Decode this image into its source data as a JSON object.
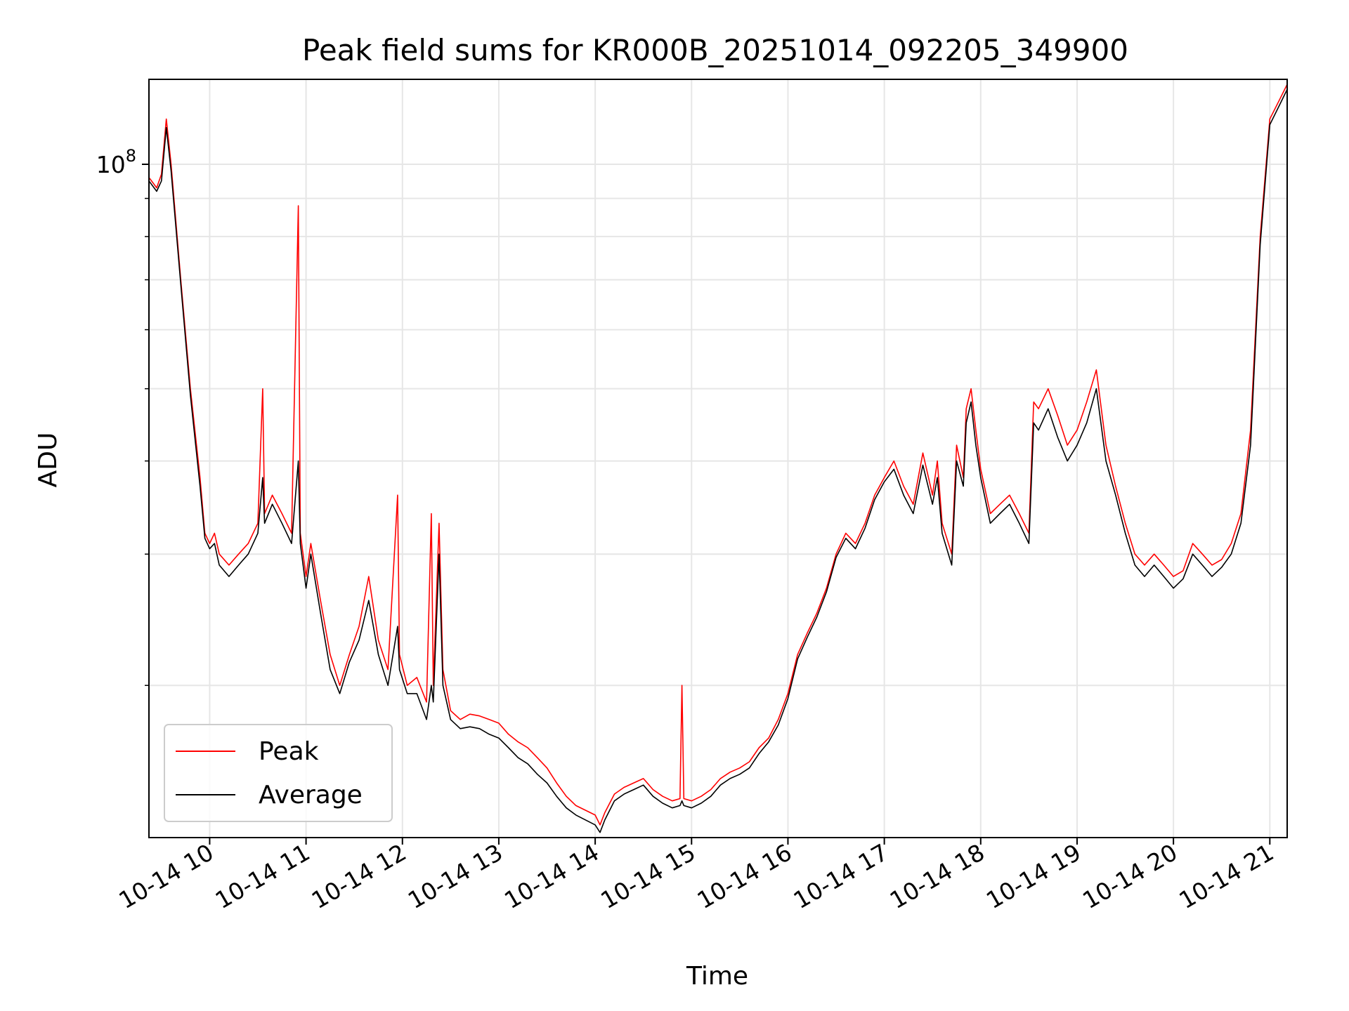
{
  "chart_data": {
    "type": "line",
    "title": "Peak field sums for KR000B_20251014_092205_349900",
    "xlabel": "Time",
    "ylabel": "ADU",
    "yscale": "log",
    "ylim": [
      12500000,
      130000000
    ],
    "xlim": [
      9.37,
      21.18
    ],
    "x_unit": "hour of day 2025-10-14",
    "grid": true,
    "legend_location": "lower-left",
    "x_ticks": [
      {
        "value": 10,
        "label": "10-14 10"
      },
      {
        "value": 11,
        "label": "10-14 11"
      },
      {
        "value": 12,
        "label": "10-14 12"
      },
      {
        "value": 13,
        "label": "10-14 13"
      },
      {
        "value": 14,
        "label": "10-14 14"
      },
      {
        "value": 15,
        "label": "10-14 15"
      },
      {
        "value": 16,
        "label": "10-14 16"
      },
      {
        "value": 17,
        "label": "10-14 17"
      },
      {
        "value": 18,
        "label": "10-14 18"
      },
      {
        "value": 19,
        "label": "10-14 19"
      },
      {
        "value": 20,
        "label": "10-14 20"
      },
      {
        "value": 21,
        "label": "10-14 21"
      }
    ],
    "y_major_ticks": [
      {
        "value": 100000000,
        "base": "10",
        "exp": "8"
      }
    ],
    "y_minor_ticks": [
      20000000,
      30000000,
      40000000,
      50000000,
      60000000,
      70000000,
      80000000,
      90000000
    ],
    "series": [
      {
        "name": "Peak",
        "color": "#ff0000",
        "points": [
          [
            9.37,
            96000000
          ],
          [
            9.45,
            93000000
          ],
          [
            9.5,
            97000000
          ],
          [
            9.55,
            115000000
          ],
          [
            9.6,
            100000000
          ],
          [
            9.7,
            70000000
          ],
          [
            9.8,
            50000000
          ],
          [
            9.9,
            38000000
          ],
          [
            9.95,
            32000000
          ],
          [
            10.0,
            31000000
          ],
          [
            10.05,
            32000000
          ],
          [
            10.1,
            30000000
          ],
          [
            10.2,
            29000000
          ],
          [
            10.3,
            30000000
          ],
          [
            10.4,
            31000000
          ],
          [
            10.5,
            33000000
          ],
          [
            10.55,
            50000000
          ],
          [
            10.57,
            34000000
          ],
          [
            10.65,
            36000000
          ],
          [
            10.75,
            34000000
          ],
          [
            10.85,
            32000000
          ],
          [
            10.92,
            88000000
          ],
          [
            10.94,
            32000000
          ],
          [
            11.0,
            28000000
          ],
          [
            11.05,
            31000000
          ],
          [
            11.15,
            26000000
          ],
          [
            11.25,
            22000000
          ],
          [
            11.35,
            20000000
          ],
          [
            11.45,
            22000000
          ],
          [
            11.55,
            24000000
          ],
          [
            11.65,
            28000000
          ],
          [
            11.75,
            23000000
          ],
          [
            11.85,
            21000000
          ],
          [
            11.95,
            36000000
          ],
          [
            11.97,
            22000000
          ],
          [
            12.05,
            20000000
          ],
          [
            12.15,
            20500000
          ],
          [
            12.25,
            19000000
          ],
          [
            12.3,
            34000000
          ],
          [
            12.32,
            20000000
          ],
          [
            12.38,
            33000000
          ],
          [
            12.42,
            21000000
          ],
          [
            12.5,
            18500000
          ],
          [
            12.6,
            18000000
          ],
          [
            12.7,
            18300000
          ],
          [
            12.8,
            18200000
          ],
          [
            12.9,
            18000000
          ],
          [
            13.0,
            17800000
          ],
          [
            13.1,
            17200000
          ],
          [
            13.2,
            16800000
          ],
          [
            13.3,
            16500000
          ],
          [
            13.4,
            16000000
          ],
          [
            13.5,
            15500000
          ],
          [
            13.6,
            14800000
          ],
          [
            13.7,
            14200000
          ],
          [
            13.8,
            13800000
          ],
          [
            13.9,
            13600000
          ],
          [
            14.0,
            13400000
          ],
          [
            14.05,
            13000000
          ],
          [
            14.1,
            13500000
          ],
          [
            14.2,
            14300000
          ],
          [
            14.3,
            14600000
          ],
          [
            14.4,
            14800000
          ],
          [
            14.5,
            15000000
          ],
          [
            14.6,
            14500000
          ],
          [
            14.7,
            14200000
          ],
          [
            14.8,
            14000000
          ],
          [
            14.88,
            14100000
          ],
          [
            14.9,
            20000000
          ],
          [
            14.92,
            14100000
          ],
          [
            15.0,
            14000000
          ],
          [
            15.1,
            14200000
          ],
          [
            15.2,
            14500000
          ],
          [
            15.3,
            15000000
          ],
          [
            15.4,
            15300000
          ],
          [
            15.5,
            15500000
          ],
          [
            15.6,
            15800000
          ],
          [
            15.7,
            16500000
          ],
          [
            15.8,
            17000000
          ],
          [
            15.9,
            18000000
          ],
          [
            16.0,
            19500000
          ],
          [
            16.1,
            22000000
          ],
          [
            16.2,
            23500000
          ],
          [
            16.3,
            25000000
          ],
          [
            16.4,
            27000000
          ],
          [
            16.5,
            30000000
          ],
          [
            16.6,
            32000000
          ],
          [
            16.7,
            31000000
          ],
          [
            16.8,
            33000000
          ],
          [
            16.9,
            36000000
          ],
          [
            17.0,
            38000000
          ],
          [
            17.1,
            40000000
          ],
          [
            17.2,
            37000000
          ],
          [
            17.3,
            35000000
          ],
          [
            17.4,
            41000000
          ],
          [
            17.5,
            36000000
          ],
          [
            17.55,
            40000000
          ],
          [
            17.6,
            33000000
          ],
          [
            17.7,
            30000000
          ],
          [
            17.75,
            42000000
          ],
          [
            17.82,
            38000000
          ],
          [
            17.85,
            47000000
          ],
          [
            17.9,
            50000000
          ],
          [
            17.95,
            44000000
          ],
          [
            18.0,
            39000000
          ],
          [
            18.1,
            34000000
          ],
          [
            18.2,
            35000000
          ],
          [
            18.3,
            36000000
          ],
          [
            18.4,
            34000000
          ],
          [
            18.5,
            32000000
          ],
          [
            18.55,
            48000000
          ],
          [
            18.6,
            47000000
          ],
          [
            18.7,
            50000000
          ],
          [
            18.8,
            46000000
          ],
          [
            18.9,
            42000000
          ],
          [
            19.0,
            44000000
          ],
          [
            19.1,
            48000000
          ],
          [
            19.2,
            53000000
          ],
          [
            19.3,
            42000000
          ],
          [
            19.4,
            37000000
          ],
          [
            19.5,
            33000000
          ],
          [
            19.6,
            30000000
          ],
          [
            19.7,
            29000000
          ],
          [
            19.8,
            30000000
          ],
          [
            19.9,
            29000000
          ],
          [
            20.0,
            28000000
          ],
          [
            20.1,
            28500000
          ],
          [
            20.2,
            31000000
          ],
          [
            20.3,
            30000000
          ],
          [
            20.4,
            29000000
          ],
          [
            20.5,
            29500000
          ],
          [
            20.6,
            31000000
          ],
          [
            20.7,
            34000000
          ],
          [
            20.8,
            44000000
          ],
          [
            20.9,
            80000000
          ],
          [
            21.0,
            115000000
          ],
          [
            21.1,
            122000000
          ],
          [
            21.18,
            128000000
          ]
        ]
      },
      {
        "name": "Average",
        "color": "#000000",
        "points": [
          [
            9.37,
            95000000
          ],
          [
            9.45,
            92000000
          ],
          [
            9.5,
            95000000
          ],
          [
            9.55,
            112000000
          ],
          [
            9.6,
            98000000
          ],
          [
            9.7,
            69000000
          ],
          [
            9.8,
            49000000
          ],
          [
            9.9,
            37000000
          ],
          [
            9.95,
            31500000
          ],
          [
            10.0,
            30500000
          ],
          [
            10.05,
            31000000
          ],
          [
            10.1,
            29000000
          ],
          [
            10.2,
            28000000
          ],
          [
            10.3,
            29000000
          ],
          [
            10.4,
            30000000
          ],
          [
            10.5,
            32000000
          ],
          [
            10.55,
            38000000
          ],
          [
            10.57,
            33000000
          ],
          [
            10.65,
            35000000
          ],
          [
            10.75,
            33000000
          ],
          [
            10.85,
            31000000
          ],
          [
            10.92,
            40000000
          ],
          [
            10.94,
            31000000
          ],
          [
            11.0,
            27000000
          ],
          [
            11.05,
            30000000
          ],
          [
            11.15,
            25000000
          ],
          [
            11.25,
            21000000
          ],
          [
            11.35,
            19500000
          ],
          [
            11.45,
            21500000
          ],
          [
            11.55,
            23000000
          ],
          [
            11.65,
            26000000
          ],
          [
            11.75,
            22000000
          ],
          [
            11.85,
            20000000
          ],
          [
            11.95,
            24000000
          ],
          [
            11.97,
            21000000
          ],
          [
            12.05,
            19500000
          ],
          [
            12.15,
            19500000
          ],
          [
            12.25,
            18000000
          ],
          [
            12.3,
            20000000
          ],
          [
            12.32,
            19000000
          ],
          [
            12.38,
            30000000
          ],
          [
            12.42,
            20000000
          ],
          [
            12.5,
            18000000
          ],
          [
            12.6,
            17500000
          ],
          [
            12.7,
            17600000
          ],
          [
            12.8,
            17500000
          ],
          [
            12.9,
            17200000
          ],
          [
            13.0,
            17000000
          ],
          [
            13.1,
            16500000
          ],
          [
            13.2,
            16000000
          ],
          [
            13.3,
            15700000
          ],
          [
            13.4,
            15200000
          ],
          [
            13.5,
            14800000
          ],
          [
            13.6,
            14200000
          ],
          [
            13.7,
            13700000
          ],
          [
            13.8,
            13400000
          ],
          [
            13.9,
            13200000
          ],
          [
            14.0,
            13000000
          ],
          [
            14.05,
            12700000
          ],
          [
            14.1,
            13200000
          ],
          [
            14.2,
            14000000
          ],
          [
            14.3,
            14300000
          ],
          [
            14.4,
            14500000
          ],
          [
            14.5,
            14700000
          ],
          [
            14.6,
            14200000
          ],
          [
            14.7,
            13900000
          ],
          [
            14.8,
            13700000
          ],
          [
            14.88,
            13800000
          ],
          [
            14.9,
            14000000
          ],
          [
            14.92,
            13800000
          ],
          [
            15.0,
            13700000
          ],
          [
            15.1,
            13900000
          ],
          [
            15.2,
            14200000
          ],
          [
            15.3,
            14700000
          ],
          [
            15.4,
            15000000
          ],
          [
            15.5,
            15200000
          ],
          [
            15.6,
            15500000
          ],
          [
            15.7,
            16200000
          ],
          [
            15.8,
            16800000
          ],
          [
            15.9,
            17700000
          ],
          [
            16.0,
            19200000
          ],
          [
            16.1,
            21700000
          ],
          [
            16.2,
            23200000
          ],
          [
            16.3,
            24700000
          ],
          [
            16.4,
            26700000
          ],
          [
            16.5,
            29700000
          ],
          [
            16.6,
            31500000
          ],
          [
            16.7,
            30500000
          ],
          [
            16.8,
            32500000
          ],
          [
            16.9,
            35500000
          ],
          [
            17.0,
            37500000
          ],
          [
            17.1,
            39000000
          ],
          [
            17.2,
            36000000
          ],
          [
            17.3,
            34000000
          ],
          [
            17.4,
            39500000
          ],
          [
            17.5,
            35000000
          ],
          [
            17.55,
            38000000
          ],
          [
            17.6,
            32000000
          ],
          [
            17.7,
            29000000
          ],
          [
            17.75,
            40000000
          ],
          [
            17.82,
            37000000
          ],
          [
            17.85,
            45000000
          ],
          [
            17.9,
            48000000
          ],
          [
            17.95,
            42000000
          ],
          [
            18.0,
            38000000
          ],
          [
            18.1,
            33000000
          ],
          [
            18.2,
            34000000
          ],
          [
            18.3,
            35000000
          ],
          [
            18.4,
            33000000
          ],
          [
            18.5,
            31000000
          ],
          [
            18.55,
            45000000
          ],
          [
            18.6,
            44000000
          ],
          [
            18.7,
            47000000
          ],
          [
            18.8,
            43000000
          ],
          [
            18.9,
            40000000
          ],
          [
            19.0,
            42000000
          ],
          [
            19.1,
            45000000
          ],
          [
            19.2,
            50000000
          ],
          [
            19.3,
            40000000
          ],
          [
            19.4,
            36000000
          ],
          [
            19.5,
            32000000
          ],
          [
            19.6,
            29000000
          ],
          [
            19.7,
            28000000
          ],
          [
            19.8,
            29000000
          ],
          [
            19.9,
            28000000
          ],
          [
            20.0,
            27000000
          ],
          [
            20.1,
            27800000
          ],
          [
            20.2,
            30000000
          ],
          [
            20.3,
            29000000
          ],
          [
            20.4,
            28000000
          ],
          [
            20.5,
            28800000
          ],
          [
            20.6,
            30000000
          ],
          [
            20.7,
            33000000
          ],
          [
            20.8,
            42000000
          ],
          [
            20.9,
            78000000
          ],
          [
            21.0,
            113000000
          ],
          [
            21.1,
            120000000
          ],
          [
            21.18,
            126000000
          ]
        ]
      }
    ]
  }
}
